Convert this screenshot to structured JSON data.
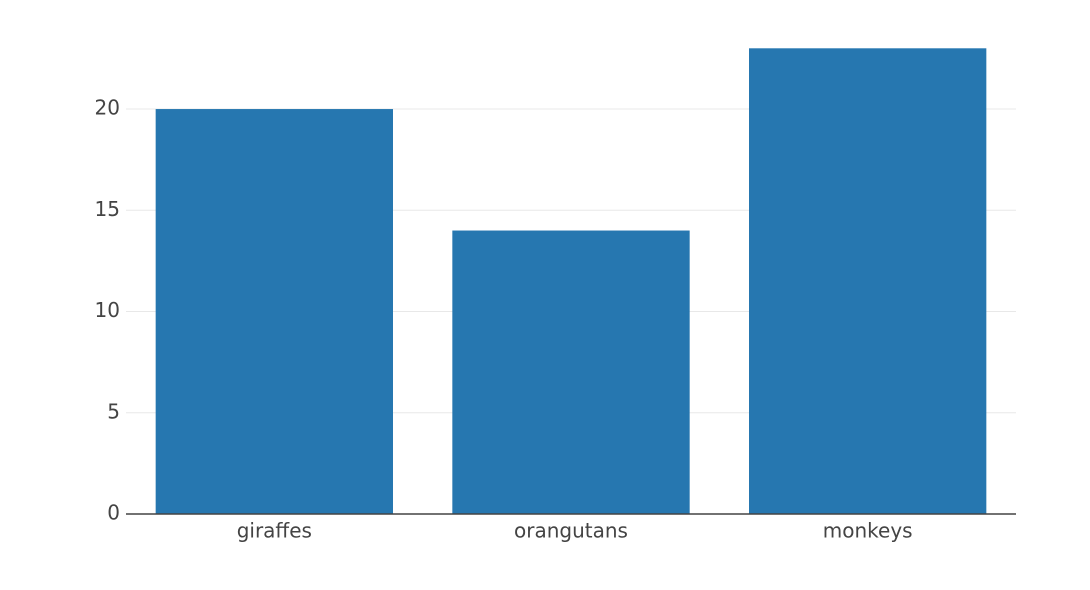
{
  "chart_data": {
    "type": "bar",
    "categories": [
      "giraffes",
      "orangutans",
      "monkeys"
    ],
    "values": [
      20,
      14,
      23
    ],
    "color": "#2677b0",
    "ylim": [
      0,
      24.2
    ],
    "yticks": [
      0,
      5,
      10,
      15,
      20
    ],
    "grid": true
  }
}
